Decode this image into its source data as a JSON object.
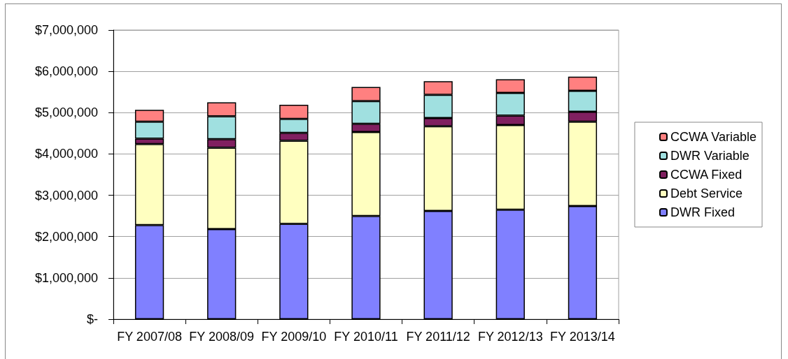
{
  "chart_data": {
    "type": "bar",
    "stacked": true,
    "categories": [
      "FY 2007/08",
      "FY 2008/09",
      "FY 2009/10",
      "FY 2010/11",
      "FY 2011/12",
      "FY 2012/13",
      "FY 2013/14"
    ],
    "series": [
      {
        "name": "DWR Fixed",
        "color": "#8080ff",
        "values": [
          2280000,
          2180000,
          2310000,
          2500000,
          2620000,
          2650000,
          2740000
        ]
      },
      {
        "name": "Debt Service",
        "color": "#ffffc0",
        "values": [
          1960000,
          1970000,
          2010000,
          2030000,
          2050000,
          2050000,
          2040000
        ]
      },
      {
        "name": "CCWA Fixed",
        "color": "#802060",
        "values": [
          130000,
          210000,
          190000,
          200000,
          200000,
          230000,
          240000
        ]
      },
      {
        "name": "DWR Variable",
        "color": "#a0e0e0",
        "values": [
          410000,
          550000,
          340000,
          550000,
          560000,
          550000,
          510000
        ]
      },
      {
        "name": "CCWA Variable",
        "color": "#ff8080",
        "values": [
          290000,
          340000,
          340000,
          340000,
          330000,
          330000,
          340000
        ]
      }
    ],
    "ylim": [
      0,
      7000000
    ],
    "yticks": [
      {
        "value": 0,
        "label": "$-"
      },
      {
        "value": 1000000,
        "label": "$1,000,000"
      },
      {
        "value": 2000000,
        "label": "$2,000,000"
      },
      {
        "value": 3000000,
        "label": "$3,000,000"
      },
      {
        "value": 4000000,
        "label": "$4,000,000"
      },
      {
        "value": 5000000,
        "label": "$5,000,000"
      },
      {
        "value": 6000000,
        "label": "$6,000,000"
      },
      {
        "value": 7000000,
        "label": "$7,000,000"
      }
    ],
    "grid": "y",
    "legend": "right"
  }
}
